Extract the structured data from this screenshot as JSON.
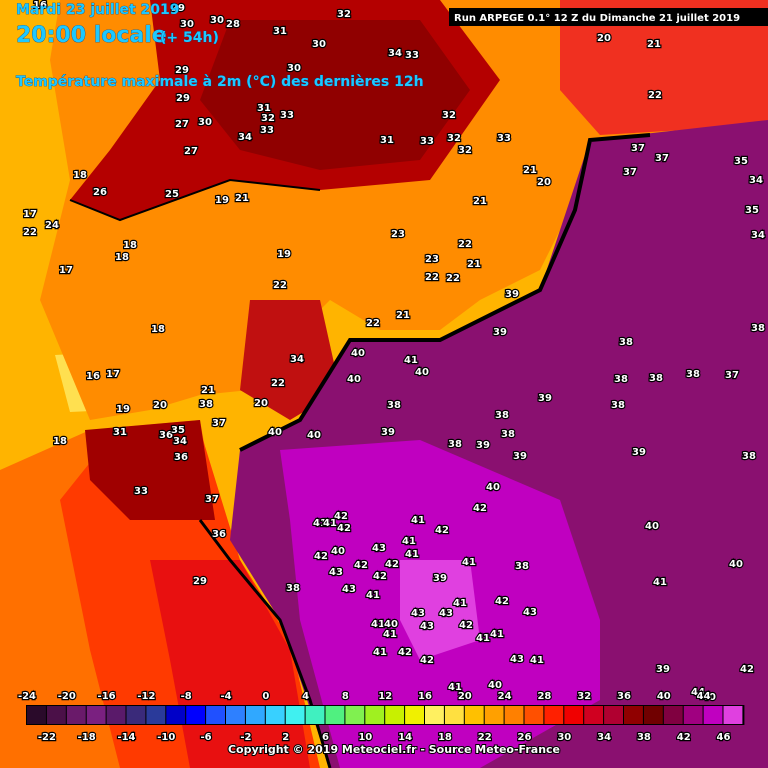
{
  "header": {
    "date": "Mardi 23 juillet 2019",
    "time": "20:00 locale",
    "lead": "(+ 54h)",
    "subtitle": "Température maximale à 2m (°C) des dernières 12h",
    "run": "Run ARPEGE 0.1° 12 Z du Dimanche 21 juillet 2019"
  },
  "legend": {
    "top_labels": [
      -24,
      -20,
      -16,
      -12,
      -8,
      -4,
      0,
      4,
      8,
      12,
      16,
      20,
      24,
      28,
      32,
      36,
      40,
      44
    ],
    "bottom_labels": [
      -22,
      -18,
      -14,
      -10,
      -6,
      -2,
      2,
      6,
      10,
      14,
      18,
      22,
      26,
      30,
      34,
      38,
      42,
      46
    ],
    "colors": [
      "#2a0a2a",
      "#4b1048",
      "#6a1a6a",
      "#7a2080",
      "#5a1a6a",
      "#3a2a7a",
      "#2a3a9a",
      "#0000c8",
      "#0000ff",
      "#2050ff",
      "#2e80ff",
      "#30a8ff",
      "#38d0ff",
      "#40f0f0",
      "#40f0c0",
      "#50f080",
      "#80f050",
      "#a0f020",
      "#c8f000",
      "#f0f000",
      "#fff060",
      "#ffe040",
      "#ffc000",
      "#ffa000",
      "#ff8000",
      "#ff5000",
      "#ff2000",
      "#f00000",
      "#d00020",
      "#b00030",
      "#900000",
      "#700000",
      "#800040",
      "#a00080",
      "#c000c0",
      "#e040e0"
    ]
  },
  "map_labels": [
    16,
    29,
    30,
    30,
    28,
    31,
    30,
    32,
    34,
    33,
    30,
    29,
    29,
    31,
    33,
    32,
    33,
    30,
    27,
    34,
    27,
    25,
    26,
    18,
    24,
    17,
    22,
    21,
    19,
    18,
    18,
    17,
    18,
    19,
    22,
    16,
    17,
    19,
    20,
    21,
    18,
    31,
    36,
    35,
    34,
    36,
    33,
    37,
    38,
    37,
    20,
    22,
    34,
    36,
    29,
    38,
    32,
    33,
    32,
    32,
    33,
    31,
    21,
    20,
    21,
    23,
    22,
    23,
    22,
    22,
    21,
    21,
    22,
    39,
    37,
    37,
    37,
    35,
    34,
    35,
    34,
    20,
    21,
    22,
    38,
    38,
    39,
    40,
    41,
    40,
    40,
    38,
    38,
    38,
    37,
    39,
    38,
    38,
    38,
    39,
    38,
    38,
    39,
    39,
    40,
    40,
    39,
    38,
    40,
    42,
    40,
    42,
    41,
    41,
    42,
    41,
    42,
    41,
    41,
    40,
    42,
    43,
    42,
    42,
    41,
    38,
    40,
    43,
    43,
    42,
    39,
    41,
    41,
    41,
    42,
    43,
    43,
    43,
    41,
    40,
    41,
    43,
    42,
    41,
    41,
    41,
    42,
    42,
    43,
    41,
    39,
    42,
    41,
    40,
    44,
    40
  ],
  "footer": "Copyright © 2019 Meteociel.fr - Source Meteo-France"
}
